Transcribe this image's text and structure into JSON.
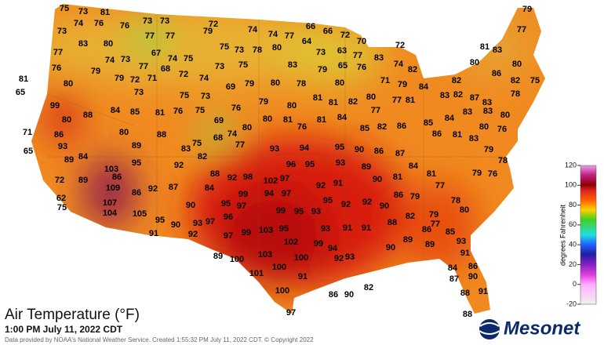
{
  "header": {
    "title": "Air Temperature (°F)",
    "subtitle": "1:00 PM July 11, 2022 CDT",
    "credit": "Data provided by NOAA's National Weather Service. Created 1:55:32 PM July 11, 2022 CDT. © Copyright 2022",
    "logo": "Mesonet"
  },
  "legend": {
    "label": "degrees Fahrenheit",
    "ticks": [
      120,
      100,
      80,
      60,
      40,
      20,
      0,
      -20
    ]
  },
  "stations": [
    75,
    73,
    81,
    74,
    76,
    76,
    73,
    73,
    72,
    74,
    66,
    66,
    72,
    79,
    73,
    83,
    80,
    77,
    77,
    79,
    74,
    77,
    64,
    70,
    72,
    77,
    81,
    83,
    77,
    74,
    73,
    67,
    74,
    75,
    75,
    73,
    78,
    80,
    73,
    63,
    77,
    83,
    74,
    82,
    80,
    86,
    80,
    81,
    76,
    79,
    79,
    72,
    71,
    68,
    72,
    74,
    78,
    79,
    65,
    76,
    71,
    79,
    84,
    82,
    75,
    82,
    80,
    77,
    73,
    75,
    73,
    69,
    79,
    80,
    83,
    80,
    73,
    75,
    65,
    99,
    88,
    84,
    85,
    81,
    76,
    75,
    69,
    76,
    79,
    80,
    81,
    81,
    82,
    80,
    77,
    77,
    81,
    83,
    82,
    87,
    83,
    78,
    80,
    80,
    74,
    68,
    75,
    80,
    80,
    81,
    76,
    81,
    84,
    85,
    82,
    86,
    85,
    84,
    83,
    83,
    80,
    80,
    76,
    71,
    86,
    84,
    93,
    65,
    89,
    89,
    88,
    83,
    82,
    77,
    93,
    94,
    95,
    90,
    86,
    87,
    81,
    86,
    83,
    79,
    78,
    103,
    95,
    92,
    88,
    92,
    98,
    96,
    95,
    93,
    89,
    84,
    81,
    79,
    76,
    72,
    89,
    86,
    86,
    92,
    87,
    84,
    90,
    102,
    97,
    92,
    91,
    90,
    81,
    77,
    109,
    62,
    107,
    95,
    99,
    94,
    97,
    95,
    92,
    92,
    86,
    79,
    78,
    80,
    75,
    104,
    105,
    96,
    97,
    99,
    95,
    93,
    90,
    82,
    79,
    77,
    95,
    90,
    93,
    97,
    91,
    92,
    97,
    99,
    103,
    95,
    93,
    91,
    91,
    88,
    86,
    85,
    102,
    99,
    89,
    93,
    89,
    90,
    94,
    92,
    93,
    91,
    100,
    100,
    103,
    89,
    84,
    86,
    101,
    100,
    91,
    87,
    90,
    100,
    86,
    90,
    82,
    88,
    91,
    97,
    88
  ]
}
